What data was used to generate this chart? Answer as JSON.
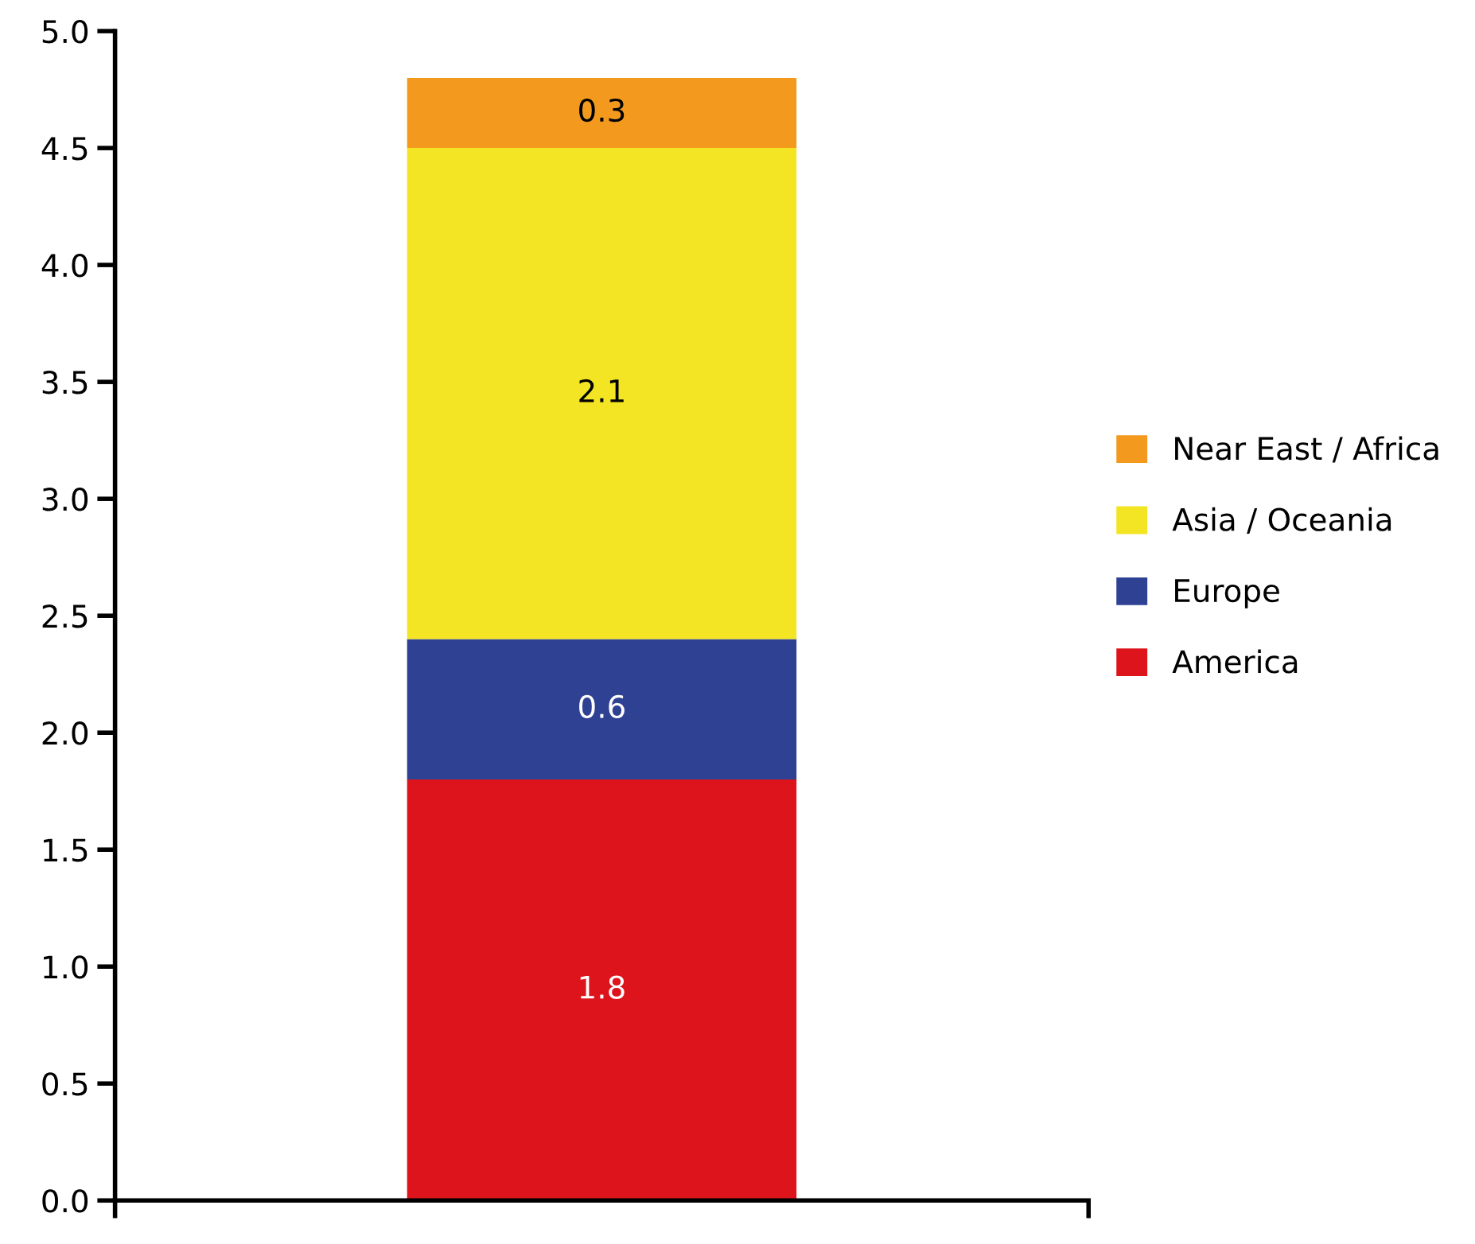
{
  "chart_data": {
    "type": "bar",
    "stacked": true,
    "categories": [
      null
    ],
    "series": [
      {
        "name": "America",
        "color": "#de141c",
        "values": [
          1.8
        ]
      },
      {
        "name": "Europe",
        "color": "#2f4192",
        "values": [
          0.6
        ]
      },
      {
        "name": "Asia / Oceania",
        "color": "#f3e523",
        "values": [
          2.1
        ]
      },
      {
        "name": "Near East / Africa",
        "color": "#f39a1e",
        "values": [
          0.3
        ]
      }
    ],
    "ylim": [
      0,
      5
    ],
    "yticks": [
      {
        "value": 0,
        "label": "0.0"
      },
      {
        "value": 0.5,
        "label": "0.5"
      },
      {
        "value": 1,
        "label": "1.0"
      },
      {
        "value": 1.5,
        "label": "1.5"
      },
      {
        "value": 2,
        "label": "2.0"
      },
      {
        "value": 2.5,
        "label": "2.5"
      },
      {
        "value": 3,
        "label": "3.0"
      },
      {
        "value": 3.5,
        "label": "3.5"
      },
      {
        "value": 4,
        "label": "4.0"
      },
      {
        "value": 4.5,
        "label": "4.5"
      },
      {
        "value": 5,
        "label": "5.0"
      }
    ],
    "data_labels": true,
    "legend": "right",
    "grid": false,
    "tick_labels": "y"
  }
}
